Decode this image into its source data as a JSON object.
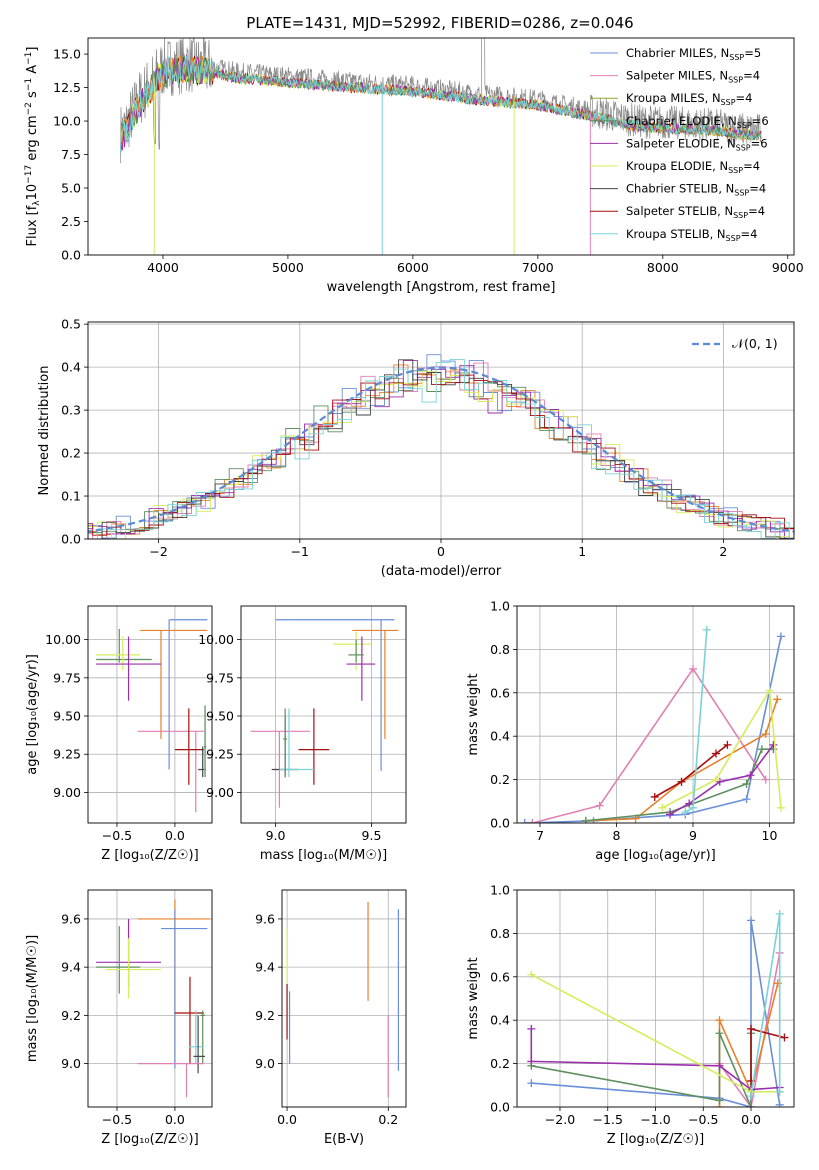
{
  "figure_title": "PLATE=1431, MJD=52992, FIBERID=0286, z=0.046",
  "colors": {
    "Chabrier MILES": "#6a8fd8",
    "Salpeter MILES": "#e17fb3",
    "Kroupa MILES": "#9aa32c",
    "Chabrier ELODIE": "#5e8f5e",
    "Salpeter ELODIE": "#9b2fae",
    "Kroupa ELODIE": "#d6ec5a",
    "Chabrier STELIB": "#444444",
    "Salpeter STELIB": "#a50f0f",
    "Kroupa STELIB": "#79d2d6",
    "orange": "#e6812a",
    "gaussian": "#5b8ad6",
    "grid": "#b0b0b0"
  },
  "chart_data": [
    {
      "id": "spectrum",
      "type": "line",
      "title": "PLATE=1431, MJD=52992, FIBERID=0286, z=0.046",
      "xlabel": "wavelength [Angstrom, rest frame]",
      "ylabel_parts": [
        "Flux [f",
        "λ",
        "10",
        "−17",
        " erg cm",
        "−2",
        " s",
        "−1",
        " A",
        "−1",
        "]"
      ],
      "xlim": [
        3400,
        9050
      ],
      "ylim": [
        0,
        16.2
      ],
      "xticks": [
        4000,
        5000,
        6000,
        7000,
        8000,
        9000
      ],
      "yticks": [
        0.0,
        2.5,
        5.0,
        7.5,
        10.0,
        12.5,
        15.0
      ],
      "ytick_labels": [
        "0.0",
        "2.5",
        "5.0",
        "7.5",
        "10.0",
        "12.5",
        "15.0"
      ],
      "legend_position": "upper right",
      "series": [
        {
          "name": "Chabrier MILES, N",
          "sub": "SSP",
          "tail": "=5"
        },
        {
          "name": "Salpeter MILES, N",
          "sub": "SSP",
          "tail": "=4"
        },
        {
          "name": "Kroupa MILES, N",
          "sub": "SSP",
          "tail": "=4"
        },
        {
          "name": "Chabrier ELODIE, N",
          "sub": "SSP",
          "tail": "=6"
        },
        {
          "name": "Salpeter ELODIE, N",
          "sub": "SSP",
          "tail": "=6"
        },
        {
          "name": "Kroupa ELODIE, N",
          "sub": "SSP",
          "tail": "=4"
        },
        {
          "name": "Chabrier STELIB, N",
          "sub": "SSP",
          "tail": "=4"
        },
        {
          "name": "Salpeter STELIB, N",
          "sub": "SSP",
          "tail": "=4"
        },
        {
          "name": "Kroupa STELIB, N",
          "sub": "SSP",
          "tail": "=4"
        }
      ],
      "approx_continuum": {
        "x": [
          3650,
          3700,
          3800,
          3900,
          4000,
          4200,
          4400,
          4600,
          5000,
          5500,
          6000,
          6500,
          7000,
          7400,
          7600,
          7800,
          8000,
          8200,
          8400,
          8600,
          8800
        ],
        "y": [
          9.0,
          9.5,
          11.5,
          12.8,
          14.0,
          14.3,
          14.0,
          13.6,
          13.3,
          12.9,
          12.6,
          12.0,
          11.6,
          10.8,
          10.4,
          10.0,
          9.9,
          9.8,
          9.7,
          9.4,
          9.3
        ]
      }
    },
    {
      "id": "residuals",
      "type": "histogram",
      "xlabel": "(data-model)/error",
      "ylabel": "Normed distribution",
      "xlim": [
        -2.5,
        2.5
      ],
      "ylim": [
        0,
        0.505
      ],
      "xticks": [
        -2,
        -1,
        0,
        1,
        2
      ],
      "xtick_labels": [
        "−2",
        "−1",
        "0",
        "1",
        "2"
      ],
      "yticks": [
        0.0,
        0.1,
        0.2,
        0.3,
        0.4,
        0.5
      ],
      "ytick_labels": [
        "0.0",
        "0.1",
        "0.2",
        "0.3",
        "0.4",
        "0.5"
      ],
      "legend": {
        "label": "𝒩(0, 1)",
        "position": "upper right"
      },
      "gaussian": {
        "mu": 0,
        "sigma": 1
      }
    },
    {
      "id": "age-vs-Z",
      "type": "errorbar",
      "xlabel": "Z [log₁₀(Z/Z☉)]",
      "ylabel": "age  [log₁₀(age/yr)]",
      "xlim": [
        -0.75,
        0.32
      ],
      "ylim": [
        8.8,
        10.22
      ],
      "xticks": [
        -0.5,
        0.0
      ],
      "xtick_labels": [
        "−0.5",
        "0.0"
      ],
      "yticks": [
        9.0,
        9.25,
        9.5,
        9.75,
        10.0
      ],
      "ytick_labels": [
        "9.00",
        "9.25",
        "9.50",
        "9.75",
        "10.00"
      ],
      "points": [
        {
          "c": "Chabrier MILES",
          "x": -0.05,
          "xe": [
            -0.05,
            0.28
          ],
          "y": 10.13,
          "ye": [
            9.15,
            10.13
          ]
        },
        {
          "c": "orange",
          "x": -0.12,
          "xe": [
            -0.3,
            0.28
          ],
          "y": 10.06,
          "ye": [
            9.35,
            10.06
          ]
        },
        {
          "c": "Chabrier ELODIE",
          "x": -0.48,
          "xe": [
            -0.68,
            -0.2
          ],
          "y": 9.87,
          "ye": [
            9.85,
            10.07
          ]
        },
        {
          "c": "Kroupa ELODIE",
          "x": -0.45,
          "xe": [
            -0.68,
            -0.3
          ],
          "y": 9.9,
          "ye": [
            9.8,
            10.02
          ]
        },
        {
          "c": "Salpeter ELODIE",
          "x": -0.4,
          "xe": [
            -0.68,
            -0.12
          ],
          "y": 9.84,
          "ye": [
            9.6,
            10.02
          ]
        },
        {
          "c": "Salpeter MILES",
          "x": 0.18,
          "xe": [
            -0.32,
            0.25
          ],
          "y": 9.4,
          "ye": [
            8.87,
            9.4
          ]
        },
        {
          "c": "Salpeter STELIB",
          "x": 0.12,
          "xe": [
            0.0,
            0.25
          ],
          "y": 9.28,
          "ye": [
            9.05,
            9.55
          ]
        },
        {
          "c": "Chabrier STELIB",
          "x": 0.24,
          "xe": [
            0.2,
            0.26
          ],
          "y": 9.15,
          "ye": [
            9.1,
            9.3
          ]
        },
        {
          "c": "Kroupa STELIB",
          "x": 0.26,
          "xe": [
            0.25,
            0.27
          ],
          "y": 9.15,
          "ye": [
            9.1,
            9.55
          ]
        },
        {
          "c": "Chabrier ELODIE",
          "x": 0.26,
          "xe": [
            0.25,
            0.27
          ],
          "y": 9.3,
          "ye": [
            9.1,
            9.57
          ]
        }
      ]
    },
    {
      "id": "age-vs-mass",
      "type": "errorbar",
      "xlabel": "mass [log₁₀(M/M☉)]",
      "ylabel": "",
      "xlim": [
        8.82,
        9.68
      ],
      "ylim": [
        8.8,
        10.22
      ],
      "xticks": [
        9.0,
        9.5
      ],
      "xtick_labels": [
        "9.0",
        "9.5"
      ],
      "yticks": [
        9.0,
        9.25,
        9.5,
        9.75,
        10.0
      ],
      "ytick_labels": [
        "9.00",
        "9.25",
        "9.50",
        "9.75",
        "10.00"
      ],
      "points": [
        {
          "c": "Chabrier MILES",
          "x": 9.55,
          "xe": [
            9.0,
            9.62
          ],
          "y": 10.13,
          "ye": [
            9.14,
            10.13
          ]
        },
        {
          "c": "orange",
          "x": 9.57,
          "xe": [
            9.4,
            9.64
          ],
          "y": 10.06,
          "ye": [
            9.35,
            10.06
          ]
        },
        {
          "c": "Kroupa ELODIE",
          "x": 9.42,
          "xe": [
            9.3,
            9.5
          ],
          "y": 9.97,
          "ye": [
            9.8,
            10.05
          ]
        },
        {
          "c": "Salpeter ELODIE",
          "x": 9.45,
          "xe": [
            9.37,
            9.52
          ],
          "y": 9.84,
          "ye": [
            9.6,
            10.02
          ]
        },
        {
          "c": "Chabrier ELODIE",
          "x": 9.42,
          "xe": [
            9.38,
            9.46
          ],
          "y": 9.9,
          "ye": [
            9.85,
            10.0
          ]
        },
        {
          "c": "Salpeter MILES",
          "x": 9.02,
          "xe": [
            8.87,
            9.18
          ],
          "y": 9.4,
          "ye": [
            8.9,
            9.4
          ]
        },
        {
          "c": "Salpeter STELIB",
          "x": 9.2,
          "xe": [
            9.12,
            9.28
          ],
          "y": 9.28,
          "ye": [
            9.05,
            9.55
          ]
        },
        {
          "c": "Chabrier STELIB",
          "x": 9.05,
          "xe": [
            8.98,
            9.12
          ],
          "y": 9.15,
          "ye": [
            9.1,
            9.5
          ]
        },
        {
          "c": "Kroupa STELIB",
          "x": 9.07,
          "xe": [
            9.02,
            9.2
          ],
          "y": 9.15,
          "ye": [
            9.1,
            9.55
          ]
        },
        {
          "c": "Chabrier ELODIE",
          "x": 9.05,
          "xe": [
            9.04,
            9.06
          ],
          "y": 9.35,
          "ye": [
            9.1,
            9.55
          ]
        }
      ]
    },
    {
      "id": "mass-weight-vs-age",
      "type": "line",
      "xlabel": "age  [log₁₀(age/yr)]",
      "ylabel": "mass weight",
      "xlim": [
        6.7,
        10.32
      ],
      "ylim": [
        0,
        1.0
      ],
      "xticks": [
        7,
        8,
        9,
        10
      ],
      "xtick_labels": [
        "7",
        "8",
        "9",
        "10"
      ],
      "yticks": [
        0.0,
        0.2,
        0.4,
        0.6,
        0.8,
        1.0
      ],
      "ytick_labels": [
        "0.0",
        "0.2",
        "0.4",
        "0.6",
        "0.8",
        "1.0"
      ],
      "series": [
        {
          "c": "Chabrier MILES",
          "x": [
            6.8,
            7.7,
            8.9,
            9.7,
            10.15
          ],
          "y": [
            0.0,
            0.01,
            0.04,
            0.11,
            0.86
          ]
        },
        {
          "c": "Salpeter MILES",
          "x": [
            6.9,
            7.78,
            9.0,
            9.95
          ],
          "y": [
            0.0,
            0.08,
            0.71,
            0.2
          ]
        },
        {
          "c": "orange",
          "x": [
            7.6,
            8.25,
            8.85,
            9.95,
            10.1
          ],
          "y": [
            0.01,
            0.02,
            0.19,
            0.41,
            0.57
          ]
        },
        {
          "c": "Chabrier ELODIE",
          "x": [
            7.6,
            8.7,
            9.7,
            9.9,
            10.05
          ],
          "y": [
            0.01,
            0.05,
            0.18,
            0.34,
            0.34
          ]
        },
        {
          "c": "Salpeter ELODIE",
          "x": [
            8.7,
            8.95,
            9.35,
            9.75,
            10.05
          ],
          "y": [
            0.04,
            0.09,
            0.19,
            0.22,
            0.36
          ]
        },
        {
          "c": "Kroupa ELODIE",
          "x": [
            8.6,
            9.3,
            10.0,
            10.15
          ],
          "y": [
            0.07,
            0.2,
            0.61,
            0.07
          ]
        },
        {
          "c": "Salpeter STELIB",
          "x": [
            8.5,
            8.85,
            9.3,
            9.45
          ],
          "y": [
            0.12,
            0.19,
            0.32,
            0.36
          ]
        },
        {
          "c": "Kroupa STELIB",
          "x": [
            8.9,
            9.0,
            9.18
          ],
          "y": [
            0.05,
            0.07,
            0.89
          ]
        }
      ]
    },
    {
      "id": "mass-vs-Z",
      "type": "errorbar",
      "xlabel": "Z [log₁₀(Z/Z☉)]",
      "ylabel": "mass [log₁₀(M/M☉)]",
      "xlim": [
        -0.75,
        0.32
      ],
      "ylim": [
        8.82,
        9.72
      ],
      "xticks": [
        -0.5,
        0.0
      ],
      "xtick_labels": [
        "−0.5",
        "0.0"
      ],
      "yticks": [
        9.0,
        9.2,
        9.4,
        9.6
      ],
      "ytick_labels": [
        "9.0",
        "9.2",
        "9.4",
        "9.6"
      ],
      "points": [
        {
          "c": "orange",
          "x": 0.0,
          "xe": [
            -0.32,
            0.3
          ],
          "y": 9.6,
          "ye": [
            9.0,
            9.68
          ]
        },
        {
          "c": "Chabrier MILES",
          "x": 0.0,
          "xe": [
            -0.12,
            0.28
          ],
          "y": 9.56,
          "ye": [
            8.98,
            9.64
          ]
        },
        {
          "c": "Salpeter ELODIE",
          "x": -0.4,
          "xe": [
            -0.68,
            -0.12
          ],
          "y": 9.42,
          "ye": [
            9.32,
            9.6
          ]
        },
        {
          "c": "Chabrier ELODIE",
          "x": -0.48,
          "xe": [
            -0.68,
            -0.3
          ],
          "y": 9.4,
          "ye": [
            9.29,
            9.57
          ]
        },
        {
          "c": "Kroupa ELODIE",
          "x": -0.4,
          "xe": [
            -0.6,
            -0.12
          ],
          "y": 9.39,
          "ye": [
            9.27,
            9.52
          ]
        },
        {
          "c": "Salpeter STELIB",
          "x": 0.13,
          "xe": [
            0.0,
            0.25
          ],
          "y": 9.21,
          "ye": [
            9.0,
            9.36
          ]
        },
        {
          "c": "Chabrier ELODIE",
          "x": 0.24,
          "xe": [
            0.22,
            0.26
          ],
          "y": 9.2,
          "ye": [
            9.0,
            9.22
          ]
        },
        {
          "c": "Kroupa STELIB",
          "x": 0.18,
          "xe": [
            0.12,
            0.25
          ],
          "y": 9.07,
          "ye": [
            9.0,
            9.22
          ]
        },
        {
          "c": "Chabrier STELIB",
          "x": 0.2,
          "xe": [
            0.16,
            0.26
          ],
          "y": 9.03,
          "ye": [
            8.96,
            9.2
          ]
        },
        {
          "c": "Salpeter MILES",
          "x": 0.1,
          "xe": [
            -0.32,
            0.25
          ],
          "y": 9.0,
          "ye": [
            8.86,
            9.0
          ]
        }
      ]
    },
    {
      "id": "mass-vs-EBV",
      "type": "errorbar",
      "xlabel": "E(B-V)",
      "ylabel": "",
      "xlim": [
        -0.01,
        0.235
      ],
      "ylim": [
        8.82,
        9.72
      ],
      "xticks": [
        0.0,
        0.2
      ],
      "xtick_labels": [
        "0.0",
        "0.2"
      ],
      "yticks": [
        9.0,
        9.2,
        9.4,
        9.6
      ],
      "ytick_labels": [
        "9.0",
        "9.2",
        "9.4",
        "9.6"
      ],
      "points": [
        {
          "c": "Chabrier MILES",
          "x": 0.22,
          "xe": [
            0.22,
            0.22
          ],
          "y": 9.3,
          "ye": [
            8.97,
            9.64
          ]
        },
        {
          "c": "orange",
          "x": 0.16,
          "xe": [
            0.16,
            0.16
          ],
          "y": 9.45,
          "ye": [
            9.26,
            9.67
          ]
        },
        {
          "c": "Salpeter MILES",
          "x": 0.2,
          "xe": [
            0.2,
            0.2
          ],
          "y": 9.0,
          "ye": [
            8.86,
            9.2
          ]
        },
        {
          "c": "Kroupa ELODIE",
          "x": 0.0,
          "xe": [
            0.0,
            0.0
          ],
          "y": 9.35,
          "ye": [
            9.2,
            9.56
          ]
        },
        {
          "c": "Salpeter STELIB",
          "x": 0.0,
          "xe": [
            0.0,
            0.0
          ],
          "y": 9.2,
          "ye": [
            9.1,
            9.33
          ]
        },
        {
          "c": "Chabrier MILES",
          "x": 0.005,
          "xe": [
            0.005,
            0.005
          ],
          "y": 9.15,
          "ye": [
            9.0,
            9.3
          ]
        }
      ]
    },
    {
      "id": "mass-weight-vs-Z",
      "type": "line",
      "xlabel": "Z [log₁₀(Z/Z☉)]",
      "ylabel": "mass weight",
      "xlim": [
        -2.45,
        0.45
      ],
      "ylim": [
        0,
        1.0
      ],
      "xticks": [
        -2.0,
        -1.5,
        -1.0,
        -0.5,
        0.0
      ],
      "xtick_labels": [
        "−2.0",
        "−1.5",
        "−1.0",
        "−0.5",
        "0.0"
      ],
      "yticks": [
        0.0,
        0.2,
        0.4,
        0.6,
        0.8,
        1.0
      ],
      "ytick_labels": [
        "0.0",
        "0.2",
        "0.4",
        "0.6",
        "0.8",
        "1.0"
      ],
      "series": [
        {
          "c": "Chabrier MILES",
          "x": [
            -2.3,
            -0.33,
            0.0,
            0.0,
            0.3
          ],
          "y": [
            0.11,
            0.04,
            0.0,
            0.86,
            0.01
          ]
        },
        {
          "c": "Salpeter MILES",
          "x": [
            -0.33,
            0.0,
            0.3
          ],
          "y": [
            0.2,
            0.0,
            0.71
          ]
        },
        {
          "c": "orange",
          "x": [
            -0.33,
            -0.33,
            0.0,
            0.28
          ],
          "y": [
            0.0,
            0.4,
            0.07,
            0.57
          ]
        },
        {
          "c": "Chabrier ELODIE",
          "x": [
            -2.3,
            -0.33,
            -0.33,
            0.0,
            0.0
          ],
          "y": [
            0.19,
            0.03,
            0.34,
            0.0,
            0.34
          ]
        },
        {
          "c": "Salpeter ELODIE",
          "x": [
            -2.3,
            -2.3,
            -0.33,
            0.0,
            0.3
          ],
          "y": [
            0.36,
            0.21,
            0.19,
            0.08,
            0.09
          ]
        },
        {
          "c": "Kroupa ELODIE",
          "x": [
            -2.3,
            0.0,
            0.3
          ],
          "y": [
            0.61,
            0.07,
            0.07
          ]
        },
        {
          "c": "Salpeter STELIB",
          "x": [
            0.0,
            0.0,
            0.35
          ],
          "y": [
            0.12,
            0.36,
            0.32
          ]
        },
        {
          "c": "Kroupa STELIB",
          "x": [
            0.0,
            0.3,
            0.3
          ],
          "y": [
            0.05,
            0.89,
            0.07
          ]
        }
      ]
    }
  ]
}
